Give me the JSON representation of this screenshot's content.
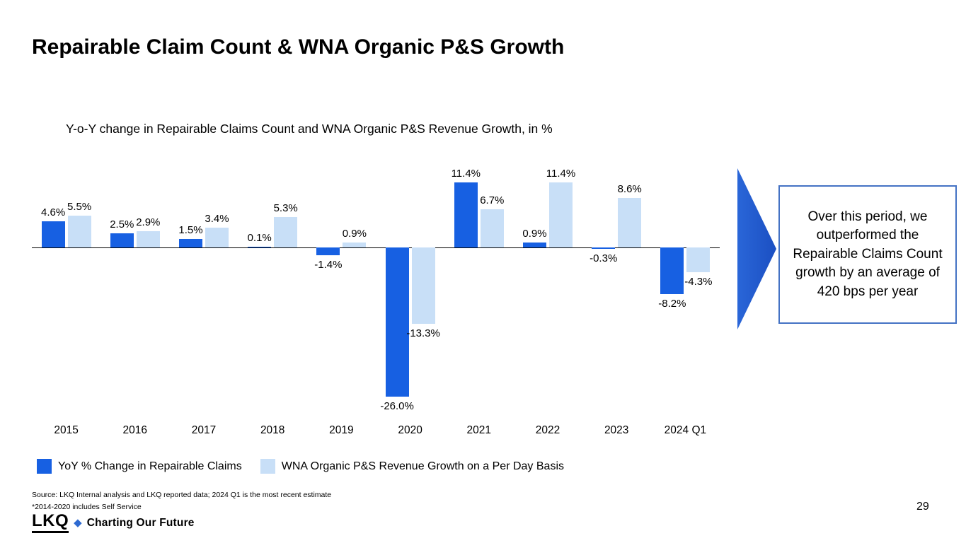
{
  "slide": {
    "title": "Repairable Claim Count & WNA Organic P&S Growth",
    "callout": "Over this period, we outperformed the Repairable Claims Count growth by an average of 420 bps per year",
    "source_line1": "Source: LKQ Internal analysis and LKQ reported data; 2024 Q1 is the most recent estimate",
    "source_line2": "*2014-2020 includes Self Service",
    "page_number": "29",
    "logo_text": "LKQ",
    "logo_diamond": "◆",
    "logo_tagline": "Charting Our Future"
  },
  "chart_data": {
    "type": "bar",
    "title": "Y-o-Y change in Repairable Claims Count and WNA Organic P&S Revenue Growth, in %",
    "categories": [
      "2015",
      "2016",
      "2017",
      "2018",
      "2019",
      "2020",
      "2021",
      "2022",
      "2023",
      "2024 Q1"
    ],
    "series": [
      {
        "name": "YoY % Change in Repairable Claims",
        "color": "#1760e2",
        "values": [
          4.6,
          2.5,
          1.5,
          0.1,
          -1.4,
          -26.0,
          11.4,
          0.9,
          -0.3,
          -8.2
        ]
      },
      {
        "name": "WNA Organic P&S Revenue Growth on a Per Day Basis",
        "color": "#c8dff7",
        "values": [
          5.5,
          2.9,
          3.4,
          5.3,
          0.9,
          -13.3,
          6.7,
          11.4,
          8.6,
          -4.3
        ]
      }
    ],
    "data_labels": true,
    "label_format": "one_decimal_percent",
    "ylim": [
      -27,
      13
    ],
    "grid": false,
    "legend_position": "bottom",
    "xlabel": "",
    "ylabel": ""
  }
}
